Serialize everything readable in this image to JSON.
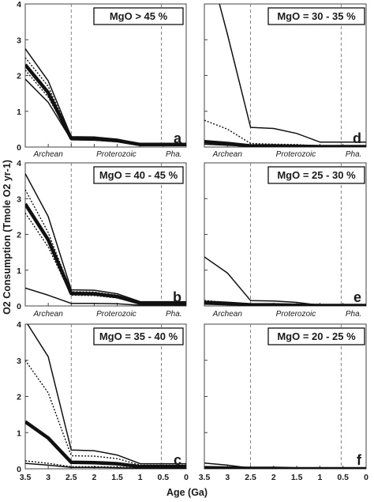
{
  "figure": {
    "ylabel": "O2 Consumption (Tmole O2 yr-1)",
    "xlabel": "Age (Ga)",
    "x_ticks": [
      "3.5",
      "3",
      "2.5",
      "2",
      "1.5",
      "1",
      "0.5",
      "0"
    ],
    "y_ticks": [
      "0",
      "1",
      "2",
      "3",
      "4"
    ],
    "eons": [
      "Archean",
      "Proterozoic",
      "Pha."
    ]
  },
  "chart_data": [
    {
      "type": "line",
      "panel": "a",
      "title": "MgO  > 45 %",
      "xlim": [
        3.5,
        0
      ],
      "ylim": [
        0,
        4
      ],
      "boundaries": [
        2.5,
        0.54
      ],
      "x": [
        3.5,
        3.0,
        2.5,
        2.0,
        1.5,
        1.0,
        0.5,
        0.0
      ],
      "series": [
        {
          "style": "thin",
          "values": [
            2.75,
            1.85,
            0.29,
            0.28,
            0.22,
            0.09,
            0.09,
            0.09
          ]
        },
        {
          "style": "dotted",
          "values": [
            2.5,
            1.7,
            0.27,
            0.26,
            0.2,
            0.08,
            0.08,
            0.08
          ]
        },
        {
          "style": "thick",
          "values": [
            2.3,
            1.52,
            0.24,
            0.23,
            0.18,
            0.07,
            0.07,
            0.07
          ]
        },
        {
          "style": "dotted",
          "values": [
            2.15,
            1.4,
            0.22,
            0.21,
            0.17,
            0.06,
            0.06,
            0.06
          ]
        },
        {
          "style": "thin",
          "values": [
            1.9,
            1.25,
            0.2,
            0.19,
            0.15,
            0.05,
            0.05,
            0.05
          ]
        }
      ]
    },
    {
      "type": "line",
      "panel": "d",
      "title": "MgO = 30 - 35 %",
      "xlim": [
        3.5,
        0
      ],
      "ylim": [
        0,
        4
      ],
      "boundaries": [
        2.5,
        0.54
      ],
      "x": [
        3.5,
        3.0,
        2.5,
        2.0,
        1.5,
        1.0,
        0.5,
        0.0
      ],
      "series": [
        {
          "style": "thin",
          "values": [
            5.6,
            3.15,
            0.55,
            0.52,
            0.38,
            0.14,
            0.14,
            0.14
          ]
        },
        {
          "style": "dotted",
          "values": [
            0.75,
            0.5,
            0.1,
            0.08,
            0.07,
            0.03,
            0.03,
            0.03
          ]
        },
        {
          "style": "thick",
          "values": [
            0.15,
            0.1,
            0.03,
            0.03,
            0.02,
            0.01,
            0.01,
            0.01
          ]
        },
        {
          "style": "thin",
          "values": [
            0.08,
            0.05,
            0.02,
            0.02,
            0.01,
            0.0,
            0.0,
            0.0
          ]
        }
      ]
    },
    {
      "type": "line",
      "panel": "b",
      "title": "MgO = 40 - 45 %",
      "xlim": [
        3.5,
        0
      ],
      "ylim": [
        0,
        4
      ],
      "boundaries": [
        2.5,
        0.54
      ],
      "x": [
        3.5,
        3.0,
        2.5,
        2.0,
        1.5,
        1.0,
        0.5,
        0.0
      ],
      "series": [
        {
          "style": "thin",
          "values": [
            3.7,
            2.5,
            0.45,
            0.44,
            0.34,
            0.12,
            0.12,
            0.12
          ]
        },
        {
          "style": "dotted",
          "values": [
            3.25,
            2.05,
            0.4,
            0.39,
            0.3,
            0.1,
            0.1,
            0.1
          ]
        },
        {
          "style": "thick",
          "values": [
            2.85,
            1.85,
            0.35,
            0.34,
            0.26,
            0.08,
            0.08,
            0.08
          ]
        },
        {
          "style": "dotted",
          "values": [
            2.6,
            1.65,
            0.3,
            0.29,
            0.22,
            0.07,
            0.07,
            0.07
          ]
        },
        {
          "style": "thin",
          "values": [
            0.5,
            0.3,
            0.07,
            0.07,
            0.06,
            0.02,
            0.02,
            0.02
          ]
        }
      ]
    },
    {
      "type": "line",
      "panel": "e",
      "title": "MgO = 25 - 30 %",
      "xlim": [
        3.5,
        0
      ],
      "ylim": [
        0,
        4
      ],
      "boundaries": [
        2.5,
        0.54
      ],
      "x": [
        3.5,
        3.0,
        2.5,
        2.0,
        1.5,
        1.0,
        0.5,
        0.0
      ],
      "series": [
        {
          "style": "thin",
          "values": [
            1.37,
            0.92,
            0.15,
            0.14,
            0.1,
            0.02,
            0.02,
            0.02
          ]
        },
        {
          "style": "dotted",
          "values": [
            0.15,
            0.1,
            0.04,
            0.04,
            0.03,
            0.01,
            0.01,
            0.01
          ]
        },
        {
          "style": "thick",
          "values": [
            0.1,
            0.07,
            0.03,
            0.03,
            0.02,
            0.01,
            0.01,
            0.01
          ]
        },
        {
          "style": "thin",
          "values": [
            0.05,
            0.03,
            0.01,
            0.01,
            0.01,
            0.0,
            0.0,
            0.0
          ]
        }
      ]
    },
    {
      "type": "line",
      "panel": "c",
      "title": "MgO = 35 - 40 %",
      "xlim": [
        3.5,
        0
      ],
      "ylim": [
        0,
        4
      ],
      "boundaries": [
        2.5,
        0.54
      ],
      "x": [
        3.5,
        3.0,
        2.5,
        2.0,
        1.5,
        1.0,
        0.5,
        0.0
      ],
      "series": [
        {
          "style": "thin",
          "values": [
            4.1,
            3.1,
            0.52,
            0.5,
            0.38,
            0.14,
            0.14,
            0.14
          ]
        },
        {
          "style": "dotted",
          "values": [
            3.0,
            2.1,
            0.36,
            0.35,
            0.28,
            0.1,
            0.1,
            0.1
          ]
        },
        {
          "style": "thick",
          "values": [
            1.3,
            0.85,
            0.18,
            0.17,
            0.14,
            0.06,
            0.06,
            0.06
          ]
        },
        {
          "style": "dotted",
          "values": [
            0.22,
            0.15,
            0.06,
            0.06,
            0.05,
            0.02,
            0.02,
            0.02
          ]
        },
        {
          "style": "thin",
          "values": [
            0.15,
            0.1,
            0.04,
            0.04,
            0.03,
            0.01,
            0.01,
            0.01
          ]
        }
      ]
    },
    {
      "type": "line",
      "panel": "f",
      "title": "MgO = 20 - 25 %",
      "xlim": [
        3.5,
        0
      ],
      "ylim": [
        0,
        4
      ],
      "boundaries": [
        2.5,
        0.54
      ],
      "x": [
        3.5,
        3.0,
        2.5,
        2.0,
        1.5,
        1.0,
        0.5,
        0.0
      ],
      "series": [
        {
          "style": "thin",
          "values": [
            0.16,
            0.1,
            0.02,
            0.02,
            0.01,
            0.0,
            0.0,
            0.0
          ]
        },
        {
          "style": "thick",
          "values": [
            0.03,
            0.02,
            0.01,
            0.01,
            0.0,
            0.0,
            0.0,
            0.0
          ]
        }
      ]
    }
  ]
}
